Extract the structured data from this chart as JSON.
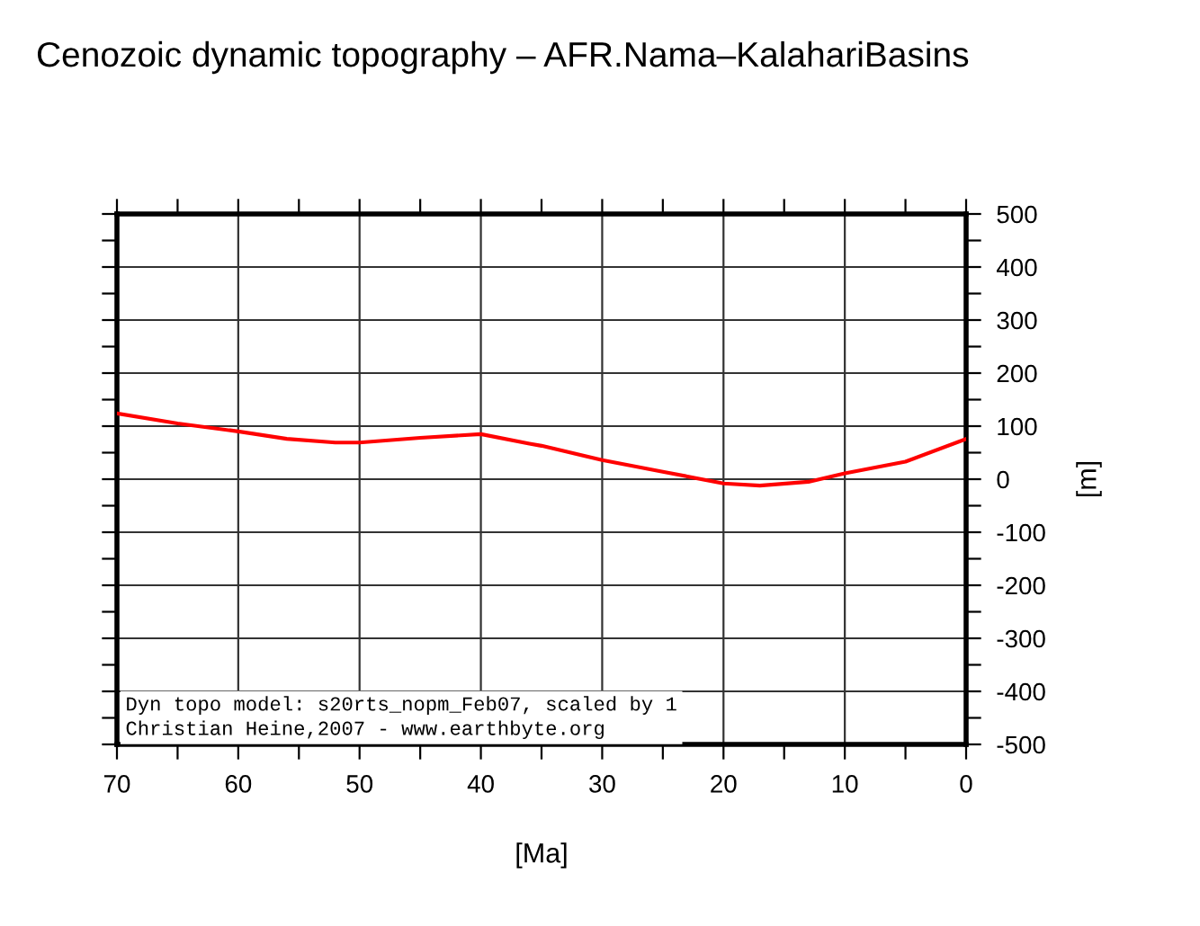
{
  "chart_data": {
    "type": "line",
    "title": "Cenozoic dynamic topography – AFR.Nama–KalahariBasins",
    "xlabel": "[Ma]",
    "ylabel": "[m]",
    "x": [
      70,
      65,
      60,
      56,
      52,
      50,
      45,
      40,
      36,
      35,
      30,
      25,
      20,
      17,
      13,
      10,
      5,
      0
    ],
    "series": [
      {
        "color": "#ff0000",
        "values": [
          124,
          105,
          90,
          76,
          69,
          69,
          78,
          85,
          67,
          63,
          36,
          14,
          -8,
          -12,
          -5,
          11,
          33,
          76
        ]
      }
    ],
    "xlim": [
      70,
      0
    ],
    "ylim": [
      -500,
      500
    ],
    "xticks": [
      70,
      {
        "value": 65,
        "label": null
      },
      60,
      {
        "value": 55,
        "label": null
      },
      50,
      {
        "value": 45,
        "label": null
      },
      40,
      {
        "value": 35,
        "label": null
      },
      30,
      {
        "value": 25,
        "label": null
      },
      20,
      {
        "value": 15,
        "label": null
      },
      10,
      {
        "value": 5,
        "label": null
      },
      0
    ],
    "yticks": [
      -500,
      {
        "value": -450,
        "label": null
      },
      -400,
      {
        "value": -350,
        "label": null
      },
      -300,
      {
        "value": -250,
        "label": null
      },
      -200,
      {
        "value": -150,
        "label": null
      },
      -100,
      {
        "value": -50,
        "label": null
      },
      0,
      {
        "value": 50,
        "label": null
      },
      100,
      {
        "value": 150,
        "label": null
      },
      200,
      {
        "value": 250,
        "label": null
      },
      300,
      {
        "value": 350,
        "label": null
      },
      400,
      {
        "value": 450,
        "label": null
      },
      500
    ],
    "grid": true,
    "marker": "none",
    "line_style": "solid",
    "annotations": [
      "Dyn topo model: s20rts_nopm_Feb07, scaled by 1\nChristian Heine,2007 - www.earthbyte.org"
    ]
  }
}
